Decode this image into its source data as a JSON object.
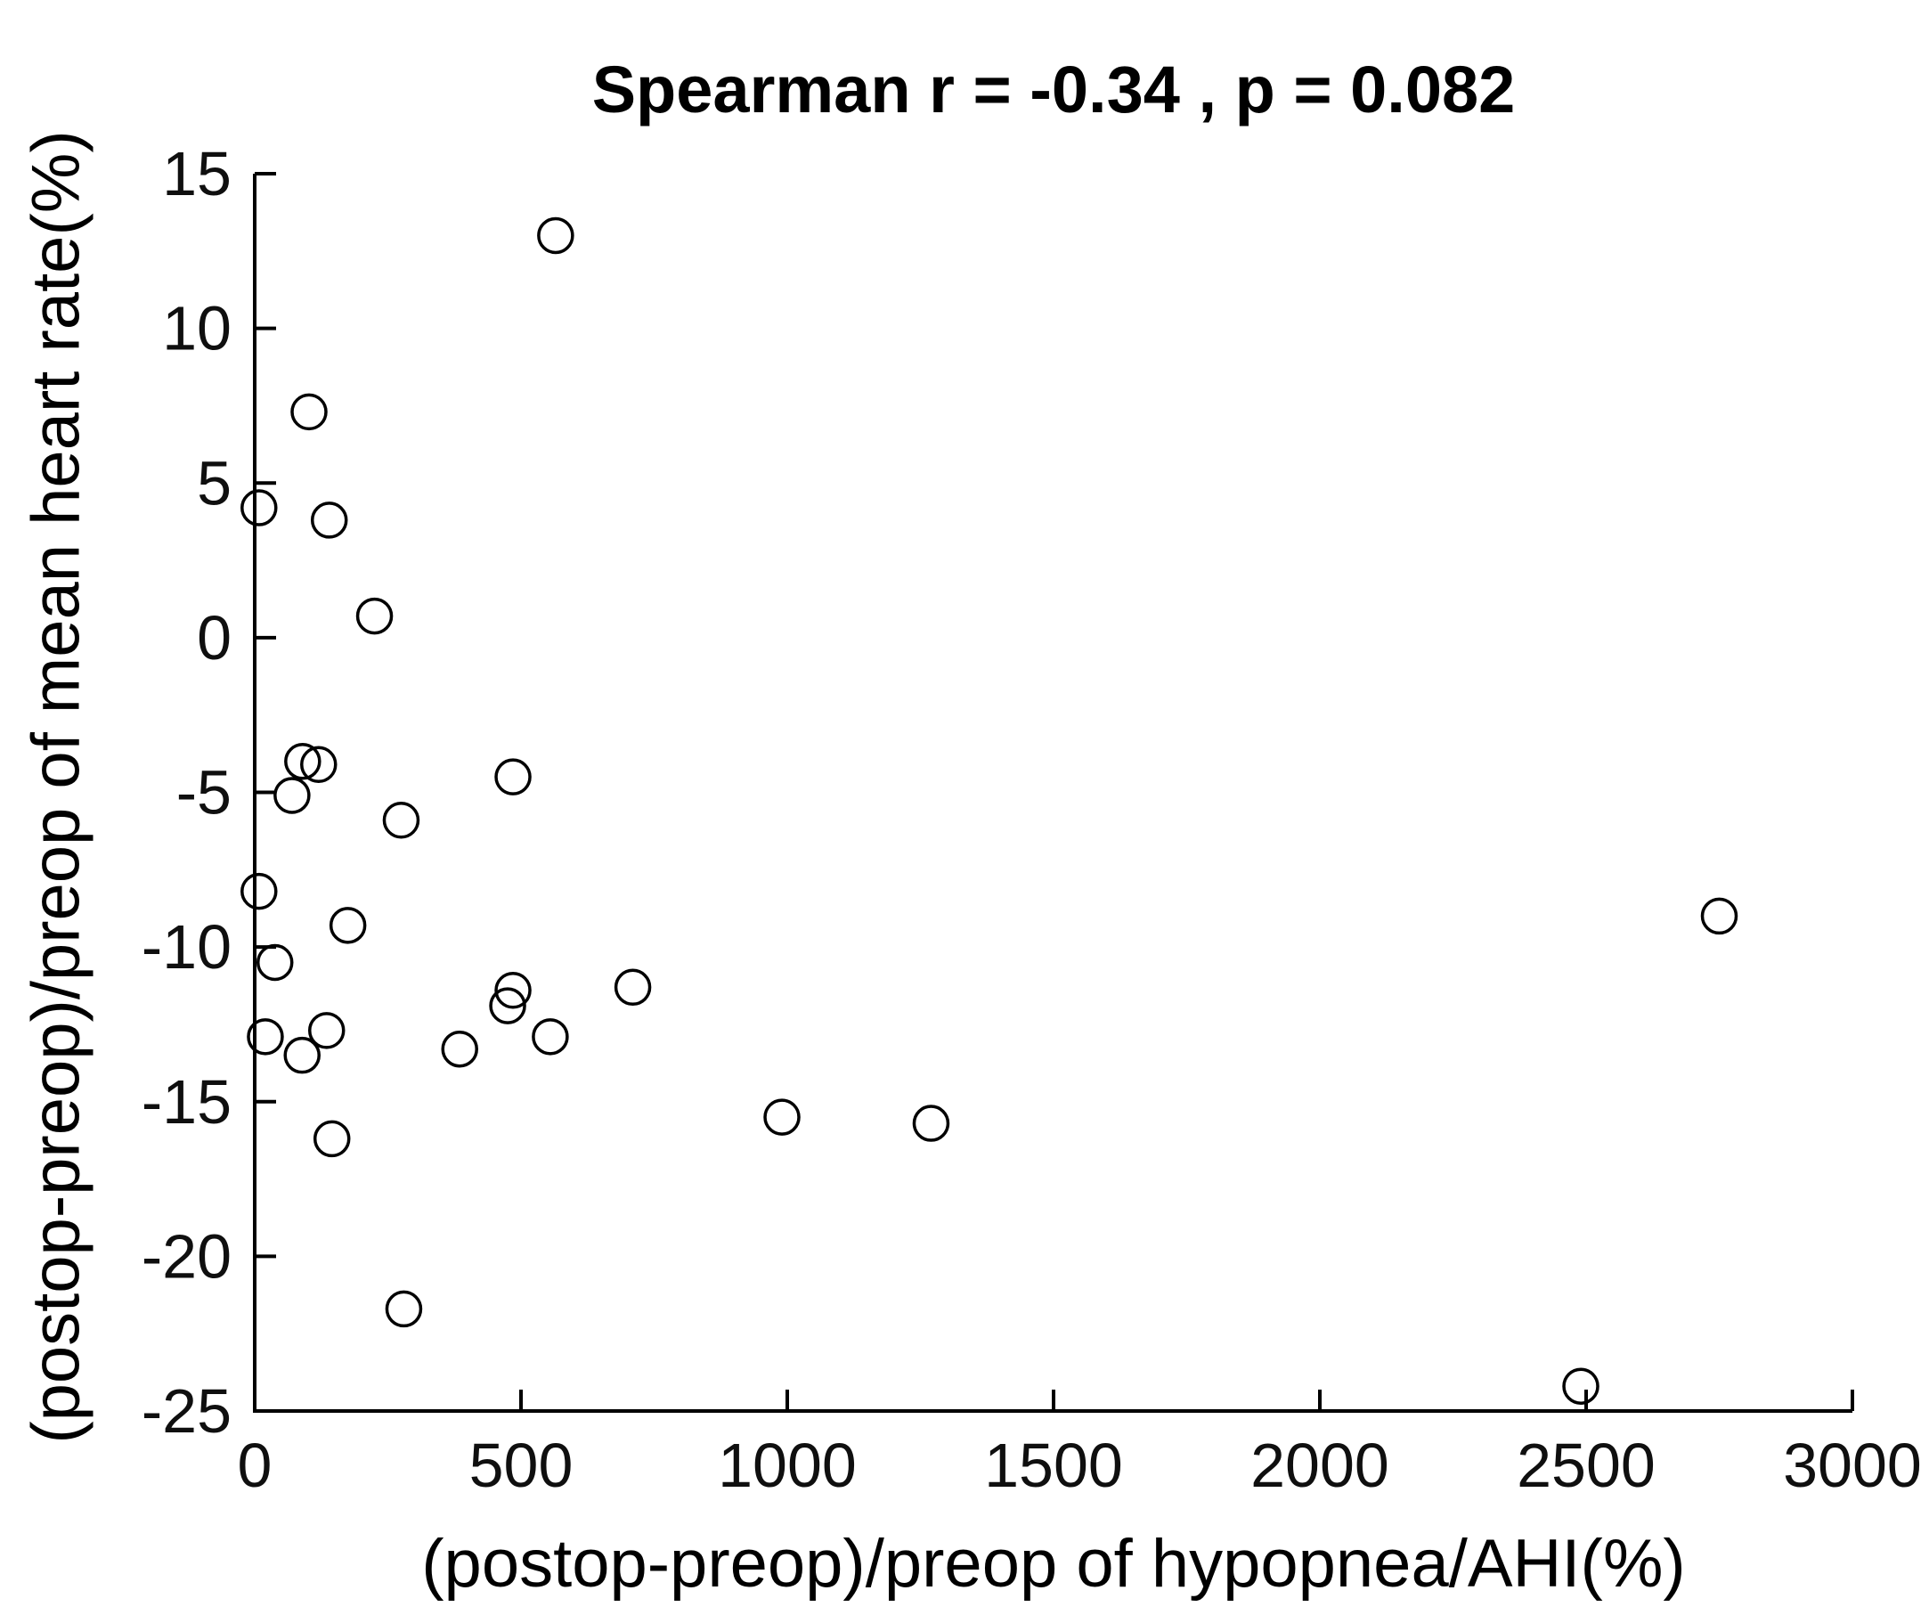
{
  "figure": {
    "background_color": "#ffffff",
    "ink_color": "#000000"
  },
  "chart_data": {
    "type": "scatter",
    "title": "Spearman r = -0.34 , p = 0.082",
    "xlabel": "(postop-preop)/preop of hypopnea/AHI(%)",
    "ylabel": "(postop-preop)/preop of mean heart rate(%)",
    "xlim": [
      0,
      3000
    ],
    "ylim": [
      -25,
      15
    ],
    "xticks": [
      0,
      500,
      1000,
      1500,
      2000,
      2500,
      3000
    ],
    "yticks": [
      15,
      10,
      5,
      0,
      -5,
      -10,
      -15,
      -20,
      -25
    ],
    "grid": false,
    "legend": null,
    "marker": "open-circle",
    "marker_color": "#000000",
    "points": [
      [
        565,
        13.0
      ],
      [
        102,
        7.3
      ],
      [
        8,
        4.2
      ],
      [
        140,
        3.8
      ],
      [
        225,
        0.7
      ],
      [
        90,
        -4.0
      ],
      [
        120,
        -4.1
      ],
      [
        70,
        -5.1
      ],
      [
        485,
        -4.5
      ],
      [
        275,
        -5.9
      ],
      [
        8,
        -8.2
      ],
      [
        175,
        -9.3
      ],
      [
        38,
        -10.5
      ],
      [
        20,
        -12.9
      ],
      [
        135,
        -12.7
      ],
      [
        89,
        -13.5
      ],
      [
        385,
        -13.3
      ],
      [
        475,
        -11.9
      ],
      [
        485,
        -11.4
      ],
      [
        555,
        -12.9
      ],
      [
        710,
        -11.3
      ],
      [
        145,
        -16.2
      ],
      [
        280,
        -21.7
      ],
      [
        990,
        -15.5
      ],
      [
        1270,
        -15.7
      ],
      [
        2490,
        -24.2
      ],
      [
        2750,
        -9.0
      ]
    ]
  }
}
